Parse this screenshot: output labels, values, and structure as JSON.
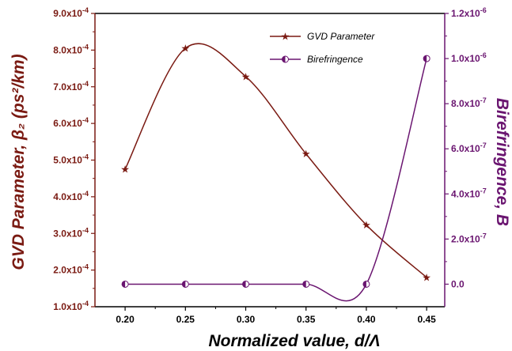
{
  "chart_data": {
    "type": "line",
    "x": [
      0.2,
      0.25,
      0.3,
      0.35,
      0.4,
      0.45
    ],
    "x_tick_labels": [
      "0.20",
      "0.25",
      "0.30",
      "0.35",
      "0.40",
      "0.45"
    ],
    "xlim": [
      0.175,
      0.465
    ],
    "xlabel": "Normalized value, d/Λ",
    "ylabel_left": "GVD Parameter, β₂ (ps²/km)",
    "ylabel_right": "Birefringence, B",
    "y_left_lim": [
      0.0001,
      0.0009
    ],
    "y_right_lim": [
      -1e-07,
      1.2e-06
    ],
    "y_left_ticks": [
      {
        "value": 0.0001,
        "mant": "1.0x10",
        "exp": "-4"
      },
      {
        "value": 0.0002,
        "mant": "2.0x10",
        "exp": "-4"
      },
      {
        "value": 0.0003,
        "mant": "3.0x10",
        "exp": "-4"
      },
      {
        "value": 0.0004,
        "mant": "4.0x10",
        "exp": "-4"
      },
      {
        "value": 0.0005,
        "mant": "5.0x10",
        "exp": "-4"
      },
      {
        "value": 0.0006,
        "mant": "6.0x10",
        "exp": "-4"
      },
      {
        "value": 0.0007,
        "mant": "7.0x10",
        "exp": "-4"
      },
      {
        "value": 0.0008,
        "mant": "8.0x10",
        "exp": "-4"
      },
      {
        "value": 0.0009,
        "mant": "9.0x10",
        "exp": "-4"
      }
    ],
    "y_right_ticks": [
      {
        "value": 0,
        "mant": "0.0",
        "exp": ""
      },
      {
        "value": 2e-07,
        "mant": "2.0x10",
        "exp": "-7"
      },
      {
        "value": 4e-07,
        "mant": "4.0x10",
        "exp": "-7"
      },
      {
        "value": 6e-07,
        "mant": "6.0x10",
        "exp": "-7"
      },
      {
        "value": 8e-07,
        "mant": "8.0x10",
        "exp": "-7"
      },
      {
        "value": 1e-06,
        "mant": "1.0x10",
        "exp": "-6"
      },
      {
        "value": 1.2e-06,
        "mant": "1.2x10",
        "exp": "-6"
      }
    ],
    "series": [
      {
        "name": "GVD Parameter",
        "axis": "left",
        "marker": "star",
        "color": "#7a1a12",
        "values": [
          0.000475,
          0.000805,
          0.000728,
          0.000517,
          0.000323,
          0.00018
        ]
      },
      {
        "name": "Birefringence",
        "axis": "right",
        "marker": "half-circle",
        "color": "#6a1570",
        "values": [
          0.0,
          0.0,
          0.0,
          0.0,
          0.0,
          1e-06
        ]
      }
    ],
    "legend_position": "top-right",
    "grid": false
  },
  "colors": {
    "left_axis": "#7a1a12",
    "right_axis": "#6a1570",
    "frame": "#000000"
  }
}
